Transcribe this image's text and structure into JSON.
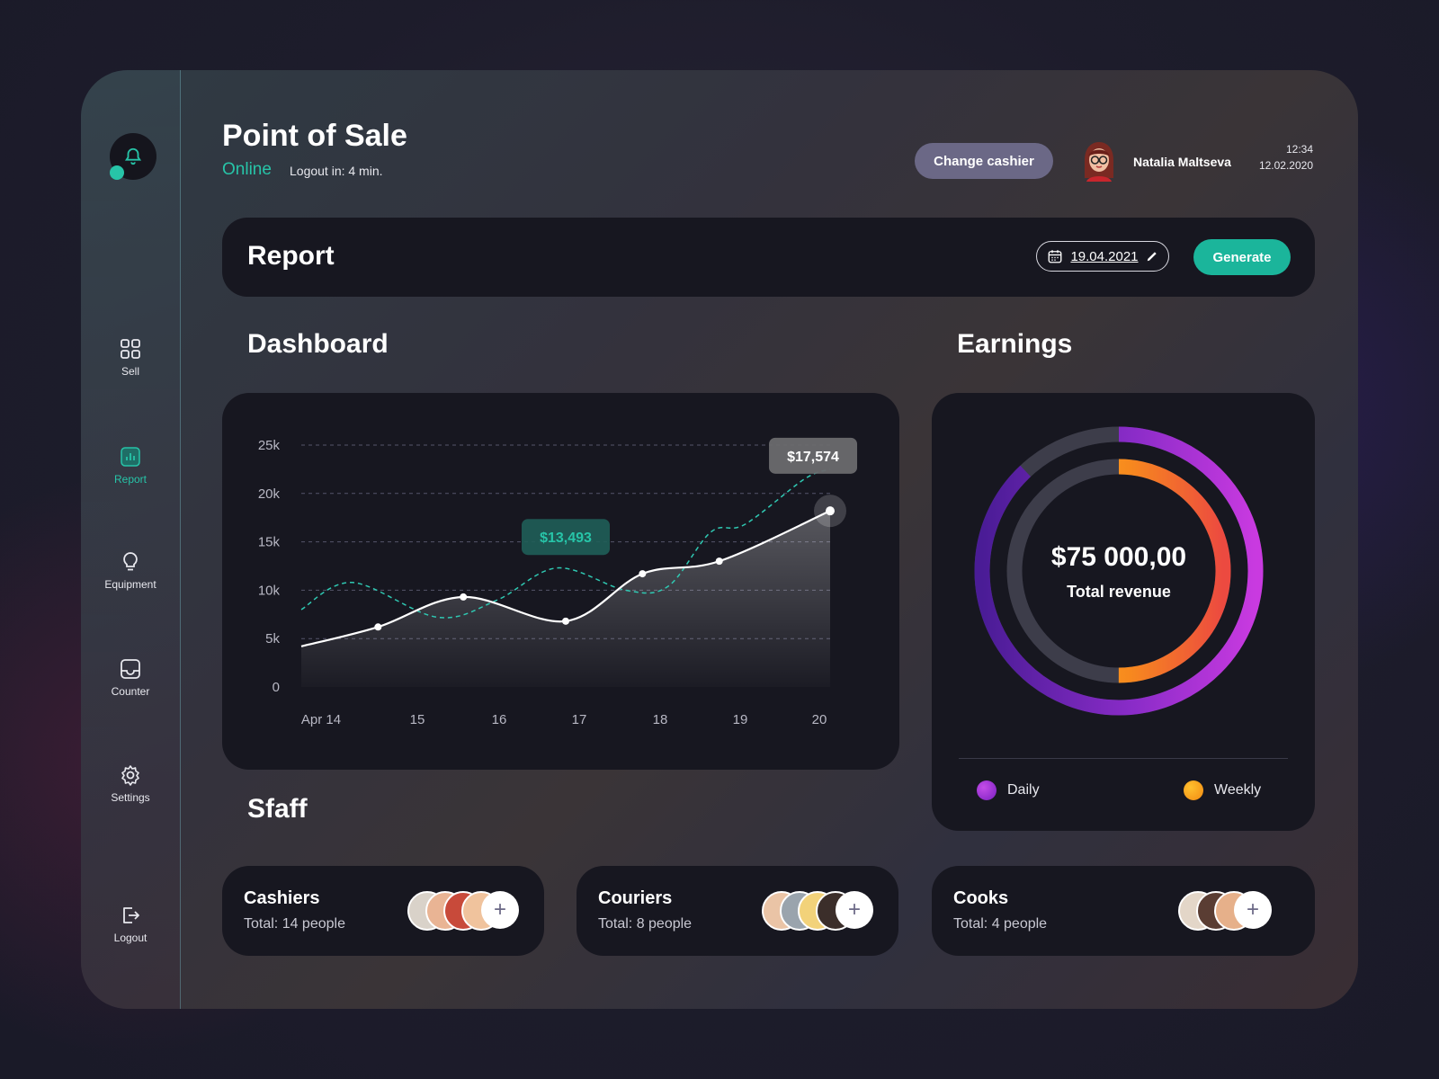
{
  "app": {
    "title": "Point of Sale",
    "status": "Online",
    "logout_info": "Logout in: 4 min.",
    "change_cashier_label": "Change cashier",
    "user_name": "Natalia Maltseva",
    "time": "12:34",
    "date": "12.02.2020"
  },
  "sidebar": {
    "items": [
      {
        "label": "Sell",
        "icon": "grid-icon"
      },
      {
        "label": "Report",
        "icon": "bar-chart-icon",
        "active": true
      },
      {
        "label": "Equipment",
        "icon": "lightbulb-icon"
      },
      {
        "label": "Counter",
        "icon": "tray-icon"
      },
      {
        "label": "Settings",
        "icon": "gear-icon"
      },
      {
        "label": "Logout",
        "icon": "logout-icon"
      }
    ]
  },
  "report": {
    "label": "Report",
    "date": "19.04.2021",
    "generate_label": "Generate"
  },
  "dashboard": {
    "title": "Dashboard"
  },
  "chart_data": {
    "type": "line",
    "categories": [
      "Apr 14",
      "15",
      "16",
      "17",
      "18",
      "19",
      "20"
    ],
    "y_ticks": [
      "25k",
      "20k",
      "15k",
      "10k",
      "5k",
      "0"
    ],
    "ylim": [
      0,
      25000
    ],
    "grid": true,
    "series": [
      {
        "style": "solid-white-area",
        "x": [
          13.6,
          14.5,
          15.5,
          16.7,
          17.6,
          18.5,
          19.8
        ],
        "values": [
          4200,
          6200,
          9300,
          6800,
          11700,
          13000,
          18200
        ]
      },
      {
        "style": "dashed-teal",
        "x": [
          13.6,
          14.2,
          15.2,
          15.9,
          16.6,
          17.4,
          17.9,
          18.4,
          18.8,
          19.5,
          19.8
        ],
        "values": [
          8000,
          10800,
          7200,
          9000,
          12300,
          10000,
          10400,
          16000,
          16800,
          21500,
          22500
        ]
      }
    ],
    "annotations": [
      {
        "label": "$13,493",
        "x": 16.7,
        "y": 15500,
        "color": "#27c4a8"
      },
      {
        "label": "$17,574",
        "x": 19.6,
        "y": 23900,
        "color": "#ffffff"
      }
    ]
  },
  "earnings": {
    "title": "Earnings",
    "amount": "$75 000,00",
    "caption": "Total revenue",
    "daily_label": "Daily",
    "weekly_label": "Weekly",
    "daily_fraction": 0.88,
    "weekly_fraction": 0.5,
    "colors": {
      "daily": "#a02fd8",
      "weekly": "#f7a21b",
      "track": "#3d3d4a"
    }
  },
  "staff": {
    "title": "Sfaff",
    "groups": [
      {
        "name": "Cashiers",
        "total": "Total: 14 people"
      },
      {
        "name": "Couriers",
        "total": "Total: 8 people"
      },
      {
        "name": "Cooks",
        "total": "Total: 4 people"
      }
    ],
    "plus_label": "+"
  }
}
